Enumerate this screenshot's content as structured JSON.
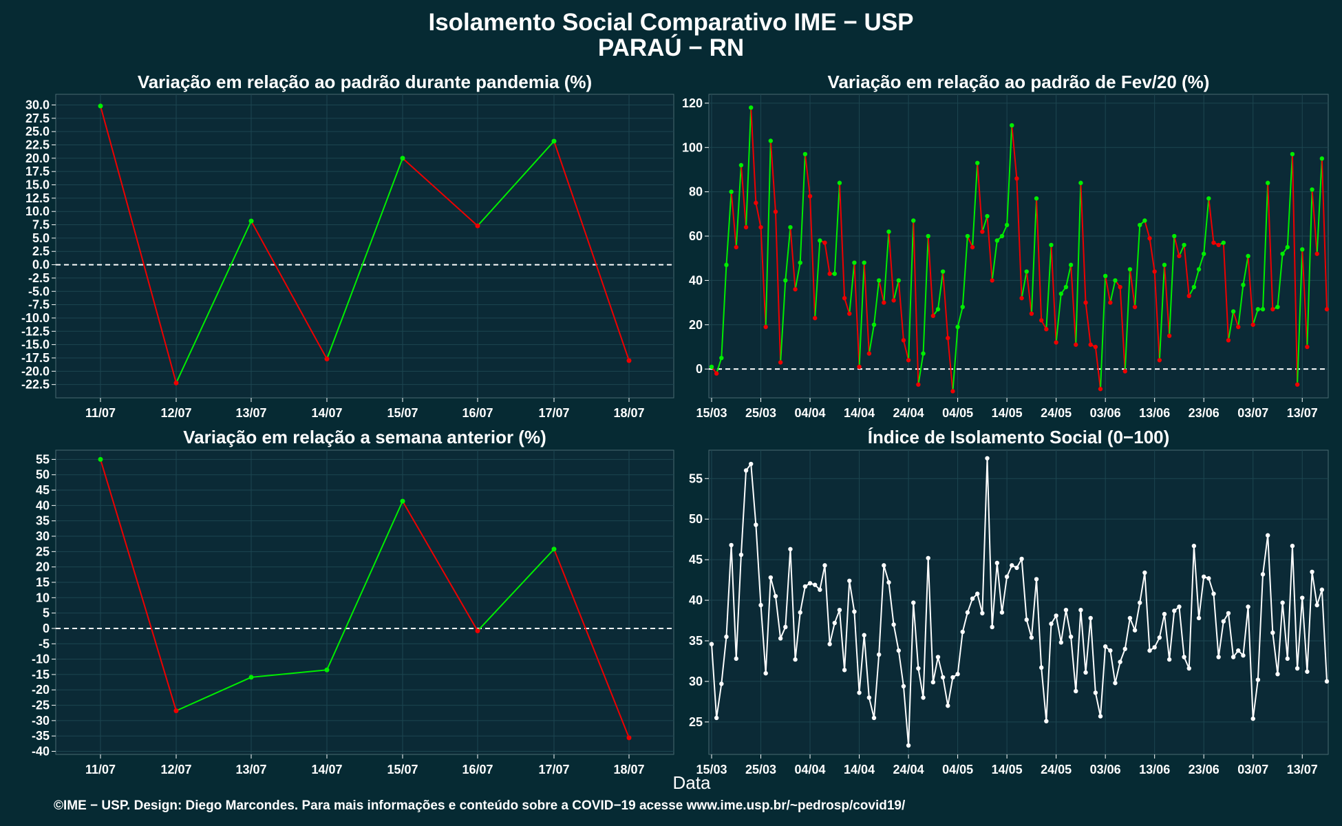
{
  "title": "Isolamento Social Comparativo IME − USP",
  "subtitle": "PARAÚ − RN",
  "xlabel": "Data",
  "footer": "©IME − USP. Design: Diego Marcondes. Para mais informações e conteúdo sobre a COVID−19 acesse www.ime.usp.br/~pedrosp/covid19/",
  "colors": {
    "background": "#062a33",
    "panel": "#0b2a36",
    "grid": "#1d4651",
    "up": "#00ee00",
    "down": "#ee0000",
    "index": "#ffffff",
    "axis": "#ffffff"
  },
  "chart_data": [
    {
      "type": "line",
      "title": "Variação em relação ao padrão durante pandemia (%)",
      "categories": [
        "11/07",
        "12/07",
        "13/07",
        "14/07",
        "15/07",
        "16/07",
        "17/07",
        "18/07"
      ],
      "values": [
        29.8,
        -22.2,
        8.2,
        -17.7,
        20.0,
        7.3,
        23.2,
        -18.0
      ],
      "ylim": [
        -25,
        32
      ],
      "yticks": [
        30.0,
        27.5,
        25.0,
        22.5,
        20.0,
        17.5,
        15.0,
        12.5,
        10.0,
        7.5,
        5.0,
        2.5,
        0.0,
        -2.5,
        -5.0,
        -7.5,
        -10.0,
        -12.5,
        -15.0,
        -17.5,
        -20.0,
        -22.5
      ],
      "grid": true,
      "reference_line": 0
    },
    {
      "type": "line",
      "title": "Variação em relação ao padrão de Fev/20 (%)",
      "x_start": "15/03",
      "xticks": [
        "15/03",
        "25/03",
        "04/04",
        "14/04",
        "24/04",
        "04/05",
        "14/05",
        "24/05",
        "03/06",
        "13/06",
        "23/06",
        "03/07",
        "13/07"
      ],
      "yticks": [
        0,
        20,
        40,
        60,
        80,
        100,
        120
      ],
      "ylim": [
        -13,
        124
      ],
      "grid": true,
      "reference_line": 0,
      "values": [
        1,
        -2,
        5,
        47,
        80,
        55,
        92,
        64,
        118,
        75,
        64,
        19,
        103,
        71,
        3,
        40,
        64,
        36,
        48,
        97,
        78,
        23,
        58,
        57,
        43,
        43,
        84,
        32,
        25,
        48,
        1,
        48,
        7,
        20,
        40,
        30,
        62,
        31,
        40,
        13,
        4,
        67,
        -7,
        7,
        60,
        24,
        27,
        44,
        14,
        -10,
        19,
        28,
        60,
        55,
        93,
        62,
        69,
        40,
        58,
        60,
        65,
        110,
        86,
        32,
        44,
        25,
        77,
        22,
        18,
        56,
        12,
        34,
        37,
        47,
        11,
        84,
        30,
        11,
        10,
        -9,
        42,
        30,
        40,
        37,
        -1,
        45,
        28,
        65,
        67,
        59,
        44,
        4,
        47,
        15,
        60,
        51,
        56,
        33,
        37,
        45,
        52,
        77,
        57,
        56,
        57,
        13,
        26,
        19,
        38,
        51,
        20,
        27,
        27,
        84,
        27,
        28,
        52,
        55,
        97,
        -7,
        54,
        10,
        81,
        52,
        95,
        27
      ]
    },
    {
      "type": "line",
      "title": "Variação em relação a semana anterior (%)",
      "categories": [
        "11/07",
        "12/07",
        "13/07",
        "14/07",
        "15/07",
        "16/07",
        "17/07",
        "18/07"
      ],
      "values": [
        55.0,
        -26.8,
        -15.9,
        -13.5,
        41.4,
        -0.8,
        25.8,
        -35.6
      ],
      "ylim": [
        -41,
        58
      ],
      "yticks": [
        55,
        50,
        45,
        40,
        35,
        30,
        25,
        20,
        15,
        10,
        5,
        0,
        -5,
        -10,
        -15,
        -20,
        -25,
        -30,
        -35,
        -40
      ],
      "grid": true,
      "reference_line": 0
    },
    {
      "type": "line",
      "title": "Índice de Isolamento Social (0−100)",
      "x_start": "15/03",
      "xticks": [
        "15/03",
        "25/03",
        "04/04",
        "14/04",
        "24/04",
        "04/05",
        "14/05",
        "24/05",
        "03/06",
        "13/06",
        "23/06",
        "03/07",
        "13/07"
      ],
      "yticks": [
        25,
        30,
        35,
        40,
        45,
        50,
        55
      ],
      "ylim": [
        21,
        58.5
      ],
      "grid": true,
      "values": [
        34.6,
        25.5,
        29.7,
        35.5,
        46.8,
        32.8,
        45.6,
        56.0,
        56.8,
        49.3,
        39.4,
        31.0,
        42.8,
        40.5,
        35.3,
        36.7,
        46.3,
        32.7,
        38.5,
        41.7,
        42.1,
        41.9,
        41.3,
        44.3,
        34.6,
        37.2,
        38.8,
        31.4,
        42.4,
        38.6,
        28.6,
        35.7,
        28.0,
        25.5,
        33.3,
        44.3,
        42.2,
        37.0,
        33.8,
        29.4,
        22.1,
        39.7,
        31.6,
        28.0,
        45.2,
        29.9,
        33.0,
        30.5,
        27.0,
        30.5,
        30.9,
        36.1,
        38.5,
        40.2,
        40.8,
        38.4,
        57.5,
        36.7,
        44.6,
        38.5,
        42.9,
        44.3,
        44.0,
        45.1,
        37.6,
        35.4,
        42.6,
        31.7,
        25.1,
        37.1,
        38.1,
        34.8,
        38.8,
        35.5,
        28.8,
        38.8,
        31.1,
        37.8,
        28.6,
        25.7,
        34.3,
        33.8,
        29.8,
        32.4,
        34.0,
        37.8,
        36.3,
        39.7,
        43.4,
        33.8,
        34.2,
        35.4,
        38.3,
        32.7,
        38.7,
        39.2,
        33.0,
        31.6,
        46.7,
        37.8,
        42.9,
        42.7,
        40.8,
        33.0,
        37.4,
        38.4,
        33.0,
        33.8,
        33.2,
        39.2,
        25.4,
        30.2,
        43.2,
        48.0,
        36.0,
        30.9,
        39.7,
        32.8,
        46.7,
        31.6,
        40.3,
        31.2,
        43.5,
        39.4,
        41.3,
        30.0
      ]
    }
  ]
}
